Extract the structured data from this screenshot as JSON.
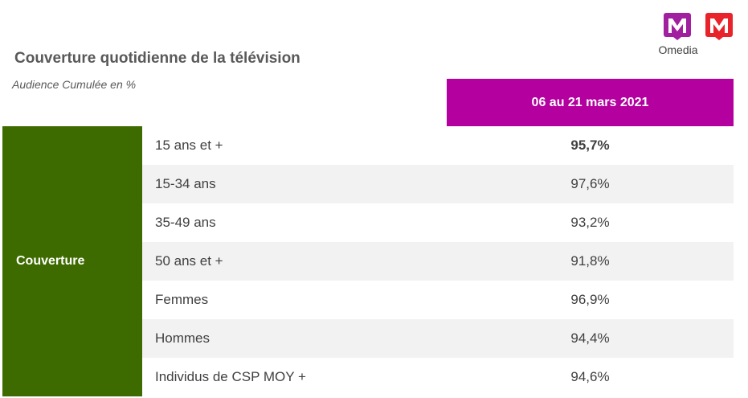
{
  "title": "Couverture quotidienne de la télévision",
  "subtitle": "Audience Cumulée en %",
  "brand": {
    "name": "Omedia",
    "logo_colors": [
      "#a020a0",
      "#e8232a"
    ]
  },
  "colors": {
    "header": "#b4009e",
    "side": "#3e6b00",
    "row_shade": "#f2f2f2"
  },
  "chart_data": {
    "type": "table",
    "column_header": "06 au 21 mars 2021",
    "group_label": "Couverture",
    "rows": [
      {
        "label": "15 ans et +",
        "value": "95,7%",
        "bold": true
      },
      {
        "label": "15-34 ans",
        "value": "97,6%"
      },
      {
        "label": "35-49 ans",
        "value": "93,2%"
      },
      {
        "label": "50 ans et +",
        "value": "91,8%"
      },
      {
        "label": "Femmes",
        "value": "96,9%"
      },
      {
        "label": "Hommes",
        "value": "94,4%"
      },
      {
        "label": "Individus de CSP MOY +",
        "value": "94,6%"
      }
    ]
  }
}
